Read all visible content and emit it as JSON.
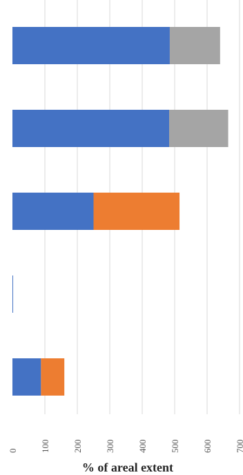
{
  "chart_data": {
    "type": "bar",
    "orientation": "horizontal",
    "stacked": true,
    "title": "",
    "xlabel": "% of areal extent",
    "ylabel": "",
    "xlim": [
      0,
      700
    ],
    "xticks": [
      0,
      100,
      200,
      300,
      400,
      500,
      600,
      700
    ],
    "tick_label_rotation": "vertical",
    "grid": true,
    "legend": "none",
    "categories": [
      "",
      "",
      "",
      "",
      ""
    ],
    "series": [
      {
        "color": "#4472c4",
        "values": [
          485,
          483,
          250,
          2,
          88
        ]
      },
      {
        "color": "#ed7d31",
        "values": [
          0,
          0,
          265,
          0,
          72
        ]
      },
      {
        "color": "#a5a5a5",
        "values": [
          155,
          182,
          0,
          0,
          0
        ]
      }
    ]
  }
}
